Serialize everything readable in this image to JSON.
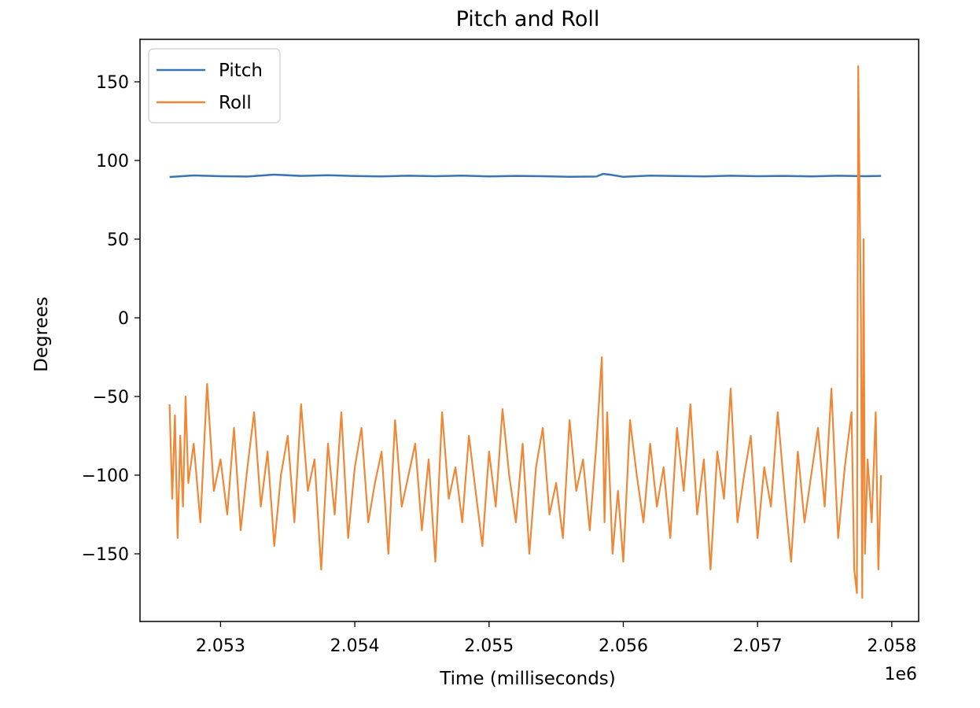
{
  "chart_data": {
    "type": "line",
    "title": "Pitch and Roll",
    "xlabel": "Time (milliseconds)",
    "ylabel": "Degrees",
    "x_offset_label": "1e6",
    "xlim": [
      2052.4,
      2058.2
    ],
    "ylim": [
      -193,
      177
    ],
    "x_ticks": [
      2053,
      2054,
      2055,
      2056,
      2057,
      2058
    ],
    "x_tick_labels": [
      "2.053",
      "2.054",
      "2.055",
      "2.056",
      "2.057",
      "2.058"
    ],
    "y_ticks": [
      150,
      100,
      50,
      0,
      -50,
      -100,
      -150
    ],
    "y_tick_labels": [
      "150",
      "100",
      "50",
      "0",
      "−50",
      "−100",
      "−150"
    ],
    "grid": false,
    "legend_position": "top-left",
    "series": [
      {
        "name": "Pitch",
        "color": "#3a74b3",
        "x": [
          2052.62,
          2052.8,
          2053.0,
          2053.2,
          2053.4,
          2053.6,
          2053.8,
          2054.0,
          2054.2,
          2054.4,
          2054.6,
          2054.8,
          2055.0,
          2055.2,
          2055.4,
          2055.6,
          2055.8,
          2055.85,
          2055.9,
          2056.0,
          2056.2,
          2056.4,
          2056.6,
          2056.8,
          2057.0,
          2057.2,
          2057.4,
          2057.6,
          2057.8,
          2057.92
        ],
        "values": [
          89.5,
          90.5,
          90.0,
          89.8,
          91.0,
          90.2,
          90.6,
          90.1,
          89.9,
          90.3,
          90.0,
          90.4,
          89.9,
          90.2,
          90.0,
          89.6,
          89.8,
          91.5,
          91.0,
          89.6,
          90.4,
          90.1,
          89.9,
          90.3,
          90.0,
          90.2,
          89.9,
          90.3,
          90.0,
          90.2
        ]
      },
      {
        "name": "Roll",
        "color": "#ef8836",
        "x": [
          2052.62,
          2052.64,
          2052.66,
          2052.68,
          2052.7,
          2052.72,
          2052.74,
          2052.76,
          2052.8,
          2052.85,
          2052.9,
          2052.95,
          2053.0,
          2053.05,
          2053.1,
          2053.15,
          2053.2,
          2053.25,
          2053.3,
          2053.35,
          2053.4,
          2053.45,
          2053.5,
          2053.55,
          2053.6,
          2053.65,
          2053.7,
          2053.75,
          2053.8,
          2053.85,
          2053.9,
          2053.95,
          2054.0,
          2054.05,
          2054.1,
          2054.15,
          2054.2,
          2054.25,
          2054.3,
          2054.35,
          2054.4,
          2054.45,
          2054.5,
          2054.55,
          2054.6,
          2054.65,
          2054.7,
          2054.75,
          2054.8,
          2054.85,
          2054.9,
          2054.95,
          2055.0,
          2055.05,
          2055.1,
          2055.15,
          2055.2,
          2055.25,
          2055.3,
          2055.35,
          2055.4,
          2055.45,
          2055.5,
          2055.55,
          2055.6,
          2055.65,
          2055.7,
          2055.75,
          2055.8,
          2055.84,
          2055.86,
          2055.88,
          2055.92,
          2055.96,
          2056.0,
          2056.05,
          2056.1,
          2056.15,
          2056.2,
          2056.25,
          2056.3,
          2056.35,
          2056.4,
          2056.45,
          2056.5,
          2056.55,
          2056.6,
          2056.65,
          2056.7,
          2056.75,
          2056.8,
          2056.85,
          2056.9,
          2056.95,
          2057.0,
          2057.05,
          2057.1,
          2057.15,
          2057.2,
          2057.25,
          2057.3,
          2057.35,
          2057.4,
          2057.45,
          2057.5,
          2057.55,
          2057.6,
          2057.65,
          2057.7,
          2057.72,
          2057.74,
          2057.75,
          2057.76,
          2057.77,
          2057.78,
          2057.79,
          2057.8,
          2057.82,
          2057.85,
          2057.88,
          2057.9,
          2057.92
        ],
        "values": [
          -55,
          -115,
          -62,
          -140,
          -75,
          -120,
          -50,
          -105,
          -80,
          -130,
          -42,
          -110,
          -90,
          -125,
          -70,
          -135,
          -95,
          -60,
          -120,
          -85,
          -145,
          -100,
          -75,
          -130,
          -55,
          -110,
          -90,
          -160,
          -80,
          -125,
          -60,
          -140,
          -95,
          -70,
          -130,
          -105,
          -85,
          -150,
          -65,
          -120,
          -100,
          -80,
          -135,
          -90,
          -155,
          -60,
          -115,
          -95,
          -130,
          -75,
          -110,
          -145,
          -85,
          -120,
          -58,
          -100,
          -130,
          -80,
          -150,
          -95,
          -70,
          -125,
          -105,
          -140,
          -65,
          -110,
          -90,
          -135,
          -80,
          -25,
          -130,
          -60,
          -150,
          -110,
          -155,
          -65,
          -100,
          -130,
          -80,
          -120,
          -95,
          -140,
          -70,
          -110,
          -55,
          -125,
          -90,
          -160,
          -85,
          -115,
          -45,
          -130,
          -100,
          -75,
          -140,
          -95,
          -120,
          -60,
          -110,
          -155,
          -85,
          -130,
          -100,
          -70,
          -120,
          -45,
          -140,
          -95,
          -60,
          -160,
          -175,
          160,
          80,
          0,
          -178,
          50,
          -150,
          -90,
          -130,
          -60,
          -160,
          -100
        ]
      }
    ]
  }
}
